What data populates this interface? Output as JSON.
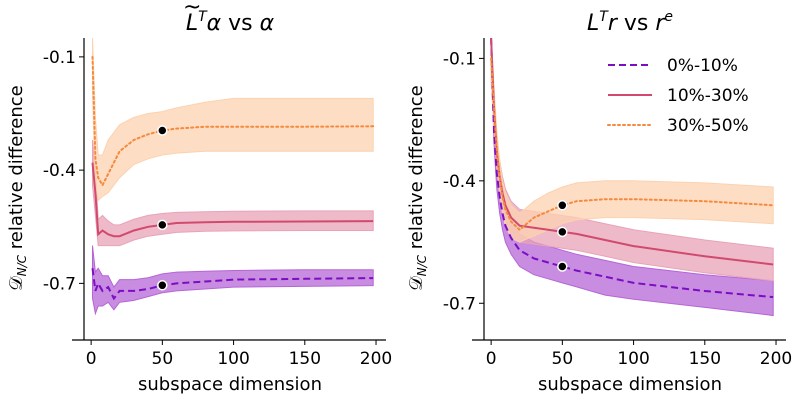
{
  "colors": {
    "c0_10": "#7B0EC4",
    "c10_30": "#D14A6E",
    "c30_50": "#F58A3C",
    "band_0_10": "#B566D6",
    "band_10_30": "#E8A3B8",
    "band_30_50": "#FCD2B0"
  },
  "legend": {
    "placement": "top-right of right panel",
    "items": [
      "0%-10%",
      "10%-30%",
      "30%-50%"
    ]
  },
  "chart_data": [
    {
      "type": "line",
      "title": "L̃ᵀα vs α",
      "title_parts": {
        "base": "L",
        "accent": "~",
        "sup": "T",
        "rest": "α vs α"
      },
      "xlabel": "subspace dimension",
      "ylabel": "relative difference",
      "ylabel_math": {
        "main": "𝒟",
        "sub": "N/C"
      },
      "xlim": [
        -5,
        207
      ],
      "ylim": [
        -0.85,
        -0.05
      ],
      "xticks": [
        0,
        50,
        100,
        150,
        200
      ],
      "yticks": [
        -0.1,
        -0.4,
        -0.7
      ],
      "ytick_labels": [
        "-0.1",
        "-0.4",
        "-0.7"
      ],
      "grid": false,
      "marker_x": 50,
      "series": [
        {
          "name": "0%-10%",
          "style": "dashed",
          "x": [
            1,
            3,
            5,
            8,
            12,
            16,
            20,
            30,
            40,
            50,
            60,
            80,
            100,
            150,
            198
          ],
          "y": [
            -0.66,
            -0.72,
            -0.7,
            -0.72,
            -0.71,
            -0.74,
            -0.72,
            -0.72,
            -0.715,
            -0.705,
            -0.7,
            -0.695,
            -0.69,
            -0.688,
            -0.686
          ],
          "lower": [
            -0.74,
            -0.78,
            -0.76,
            -0.76,
            -0.75,
            -0.77,
            -0.75,
            -0.745,
            -0.735,
            -0.725,
            -0.72,
            -0.715,
            -0.71,
            -0.708,
            -0.706
          ],
          "upper": [
            -0.6,
            -0.67,
            -0.66,
            -0.68,
            -0.68,
            -0.71,
            -0.69,
            -0.69,
            -0.685,
            -0.675,
            -0.67,
            -0.668,
            -0.666,
            -0.664,
            -0.664
          ]
        },
        {
          "name": "10%-30%",
          "style": "solid",
          "x": [
            1,
            3,
            5,
            8,
            12,
            16,
            20,
            30,
            40,
            50,
            60,
            80,
            100,
            150,
            198
          ],
          "y": [
            -0.38,
            -0.46,
            -0.57,
            -0.56,
            -0.57,
            -0.575,
            -0.575,
            -0.56,
            -0.55,
            -0.545,
            -0.54,
            -0.538,
            -0.537,
            -0.536,
            -0.535
          ],
          "lower": [
            -0.44,
            -0.52,
            -0.6,
            -0.6,
            -0.6,
            -0.6,
            -0.6,
            -0.585,
            -0.575,
            -0.57,
            -0.565,
            -0.562,
            -0.561,
            -0.56,
            -0.56
          ],
          "upper": [
            -0.32,
            -0.4,
            -0.53,
            -0.52,
            -0.535,
            -0.545,
            -0.545,
            -0.53,
            -0.52,
            -0.515,
            -0.512,
            -0.51,
            -0.509,
            -0.508,
            -0.508
          ]
        },
        {
          "name": "30%-50%",
          "style": "dotted",
          "x": [
            1,
            3,
            5,
            8,
            12,
            16,
            20,
            30,
            40,
            50,
            60,
            80,
            100,
            150,
            198
          ],
          "y": [
            -0.1,
            -0.37,
            -0.42,
            -0.44,
            -0.41,
            -0.38,
            -0.35,
            -0.32,
            -0.305,
            -0.295,
            -0.29,
            -0.285,
            -0.285,
            -0.285,
            -0.284
          ],
          "lower": [
            -0.2,
            -0.44,
            -0.48,
            -0.47,
            -0.46,
            -0.44,
            -0.42,
            -0.385,
            -0.37,
            -0.36,
            -0.355,
            -0.35,
            -0.35,
            -0.35,
            -0.35
          ],
          "upper": [
            -0.05,
            -0.26,
            -0.36,
            -0.36,
            -0.32,
            -0.3,
            -0.28,
            -0.26,
            -0.25,
            -0.245,
            -0.235,
            -0.22,
            -0.21,
            -0.21,
            -0.21
          ]
        }
      ]
    },
    {
      "type": "line",
      "title": "Lᵀr vs rᵉ",
      "title_parts": {
        "base": "L",
        "sup": "T",
        "rest": "r vs r",
        "sup2": "e"
      },
      "xlabel": "subspace dimension",
      "ylabel": "relative difference",
      "ylabel_math": {
        "main": "𝒟",
        "sub": "N/C"
      },
      "xlim": [
        -5,
        207
      ],
      "ylim": [
        -0.79,
        -0.05
      ],
      "xticks": [
        0,
        50,
        100,
        150,
        200
      ],
      "yticks": [
        -0.1,
        -0.4,
        -0.7
      ],
      "ytick_labels": [
        "-0.1",
        "-0.4",
        "-0.7"
      ],
      "grid": false,
      "marker_x": 50,
      "series": [
        {
          "name": "0%-10%",
          "style": "dashed",
          "x": [
            0,
            2,
            4,
            6,
            8,
            10,
            14,
            20,
            30,
            40,
            50,
            60,
            80,
            100,
            150,
            198
          ],
          "y": [
            -0.05,
            -0.28,
            -0.38,
            -0.44,
            -0.48,
            -0.51,
            -0.54,
            -0.57,
            -0.59,
            -0.6,
            -0.61,
            -0.62,
            -0.635,
            -0.65,
            -0.67,
            -0.685
          ],
          "lower": [
            -0.05,
            -0.31,
            -0.42,
            -0.48,
            -0.52,
            -0.55,
            -0.58,
            -0.61,
            -0.63,
            -0.64,
            -0.65,
            -0.66,
            -0.68,
            -0.69,
            -0.71,
            -0.73
          ],
          "upper": [
            -0.05,
            -0.25,
            -0.34,
            -0.4,
            -0.44,
            -0.47,
            -0.5,
            -0.53,
            -0.55,
            -0.56,
            -0.57,
            -0.58,
            -0.595,
            -0.61,
            -0.63,
            -0.645
          ]
        },
        {
          "name": "10%-30%",
          "style": "solid",
          "x": [
            0,
            2,
            4,
            6,
            8,
            10,
            14,
            20,
            30,
            40,
            50,
            60,
            80,
            100,
            150,
            198
          ],
          "y": [
            -0.05,
            -0.22,
            -0.33,
            -0.39,
            -0.43,
            -0.46,
            -0.49,
            -0.51,
            -0.515,
            -0.52,
            -0.525,
            -0.53,
            -0.545,
            -0.56,
            -0.585,
            -0.605
          ],
          "lower": [
            -0.05,
            -0.25,
            -0.37,
            -0.43,
            -0.47,
            -0.5,
            -0.53,
            -0.55,
            -0.555,
            -0.56,
            -0.565,
            -0.57,
            -0.585,
            -0.6,
            -0.625,
            -0.645
          ],
          "upper": [
            -0.05,
            -0.19,
            -0.29,
            -0.35,
            -0.39,
            -0.42,
            -0.45,
            -0.47,
            -0.475,
            -0.48,
            -0.485,
            -0.49,
            -0.505,
            -0.52,
            -0.545,
            -0.565
          ]
        },
        {
          "name": "30%-50%",
          "style": "dotted",
          "x": [
            0,
            2,
            4,
            6,
            8,
            10,
            14,
            20,
            30,
            40,
            50,
            60,
            80,
            100,
            150,
            198
          ],
          "y": [
            -0.1,
            -0.22,
            -0.32,
            -0.39,
            -0.44,
            -0.47,
            -0.5,
            -0.52,
            -0.49,
            -0.475,
            -0.46,
            -0.45,
            -0.445,
            -0.445,
            -0.45,
            -0.46
          ],
          "lower": [
            -0.16,
            -0.27,
            -0.36,
            -0.43,
            -0.48,
            -0.51,
            -0.54,
            -0.55,
            -0.535,
            -0.52,
            -0.505,
            -0.495,
            -0.49,
            -0.49,
            -0.495,
            -0.505
          ],
          "upper": [
            -0.05,
            -0.17,
            -0.28,
            -0.35,
            -0.4,
            -0.43,
            -0.46,
            -0.48,
            -0.45,
            -0.43,
            -0.415,
            -0.405,
            -0.4,
            -0.4,
            -0.405,
            -0.415
          ]
        }
      ]
    }
  ]
}
